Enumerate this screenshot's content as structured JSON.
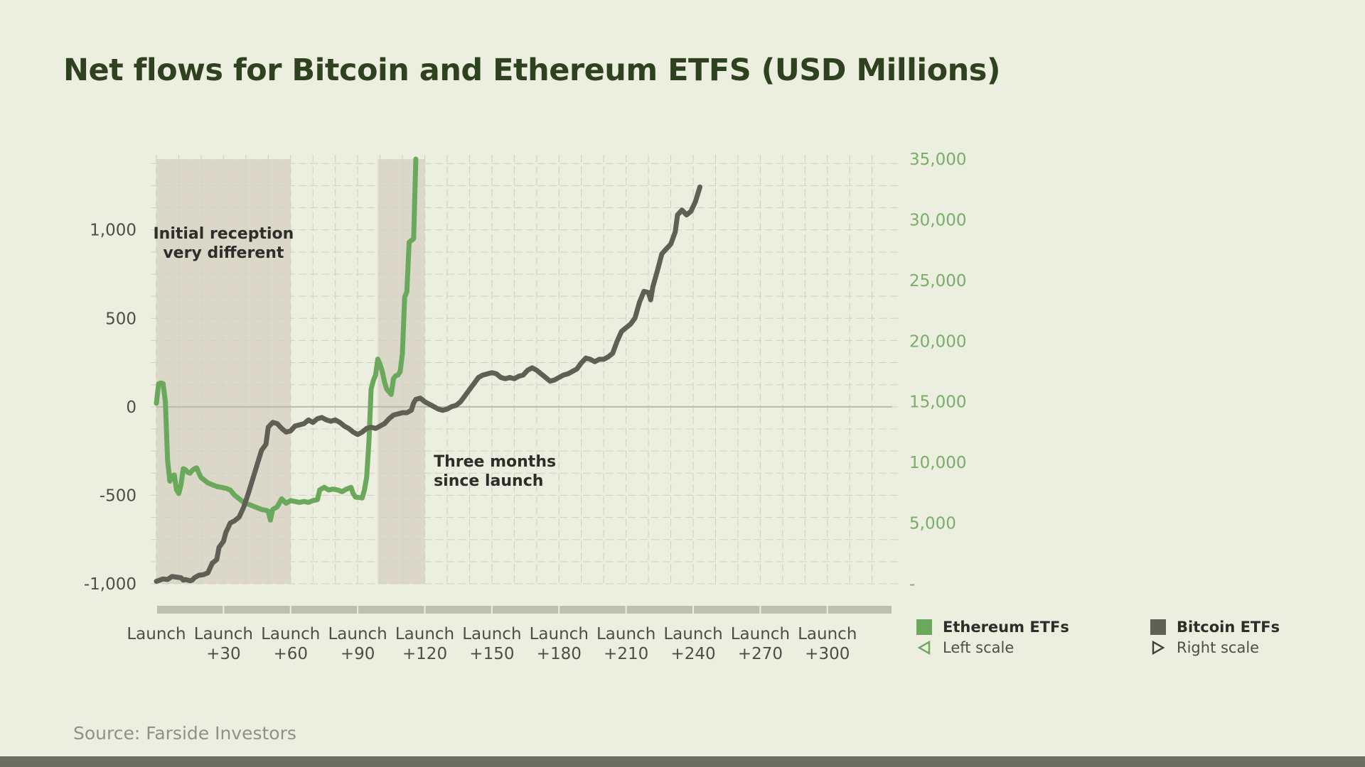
{
  "header": {
    "title": "Net flows for Bitcoin and Ethereum ETFS (USD Millions)"
  },
  "footer": {
    "source": "Source:  Farside Investors"
  },
  "colors": {
    "ethereum": "#6aa85c",
    "bitcoin": "#5f5f56",
    "shade": "#dbd8c9",
    "background": "#eceedf"
  },
  "legend": [
    {
      "name": "Ethereum ETFs",
      "scale": "Left scale",
      "color": "#6aa85c",
      "icon": "triangle-left-icon"
    },
    {
      "name": "Bitcoin ETFs",
      "scale": "Right scale",
      "color": "#5f5f56",
      "icon": "triangle-right-icon"
    }
  ],
  "chart_data": {
    "type": "line",
    "title": "Net flows for Bitcoin and Ethereum ETFS (USD Millions)",
    "x_ticks": [
      {
        "x": 0,
        "label": [
          "Launch"
        ]
      },
      {
        "x": 30,
        "label": [
          "Launch",
          "+30"
        ]
      },
      {
        "x": 60,
        "label": [
          "Launch",
          "+60"
        ]
      },
      {
        "x": 90,
        "label": [
          "Launch",
          "+90"
        ]
      },
      {
        "x": 120,
        "label": [
          "Launch",
          "+120"
        ]
      },
      {
        "x": 150,
        "label": [
          "Launch",
          "+150"
        ]
      },
      {
        "x": 180,
        "label": [
          "Launch",
          "+180"
        ]
      },
      {
        "x": 210,
        "label": [
          "Launch",
          "+210"
        ]
      },
      {
        "x": 240,
        "label": [
          "Launch",
          "+240"
        ]
      },
      {
        "x": 270,
        "label": [
          "Launch",
          "+270"
        ]
      },
      {
        "x": 300,
        "label": [
          "Launch",
          "+300"
        ]
      }
    ],
    "xlim": [
      0,
      329
    ],
    "left_axis": {
      "ticks": [
        1000,
        500,
        0,
        -500,
        -1000
      ],
      "tick_labels": [
        "1,000",
        "500",
        "0",
        "-500",
        "-1,000"
      ],
      "ylim": [
        -1000,
        1400
      ],
      "color": "#4e4e48"
    },
    "right_axis": {
      "ticks": [
        35000,
        30000,
        25000,
        20000,
        15000,
        10000,
        5000,
        0
      ],
      "tick_labels": [
        "35,000",
        "30,000",
        "25,000",
        "20,000",
        "15,000",
        "10,000",
        "5,000",
        "-"
      ],
      "ylim": [
        0,
        35000
      ],
      "color": "#7aad69"
    },
    "grid": true,
    "shaded_regions": [
      {
        "x0": 0,
        "x1": 60,
        "label": [
          "Initial reception",
          "very different"
        ]
      },
      {
        "x0": 99,
        "x1": 120,
        "label": [
          "Three months",
          "since launch"
        ]
      }
    ],
    "series": [
      {
        "name": "Ethereum ETFs",
        "axis": "left",
        "color": "#6aa85c",
        "points": [
          [
            0,
            20
          ],
          [
            1,
            130
          ],
          [
            2,
            135
          ],
          [
            3,
            130
          ],
          [
            4,
            30
          ],
          [
            5,
            -300
          ],
          [
            6,
            -420
          ],
          [
            7,
            -390
          ],
          [
            8,
            -385
          ],
          [
            9,
            -470
          ],
          [
            10,
            -490
          ],
          [
            11,
            -440
          ],
          [
            12,
            -350
          ],
          [
            13,
            -355
          ],
          [
            14,
            -370
          ],
          [
            15,
            -375
          ],
          [
            16,
            -360
          ],
          [
            17,
            -350
          ],
          [
            18,
            -345
          ],
          [
            19,
            -375
          ],
          [
            20,
            -400
          ],
          [
            21,
            -410
          ],
          [
            23,
            -430
          ],
          [
            25,
            -440
          ],
          [
            27,
            -450
          ],
          [
            29,
            -455
          ],
          [
            31,
            -460
          ],
          [
            33,
            -470
          ],
          [
            35,
            -500
          ],
          [
            37,
            -520
          ],
          [
            39,
            -540
          ],
          [
            41,
            -550
          ],
          [
            43,
            -560
          ],
          [
            45,
            -570
          ],
          [
            47,
            -580
          ],
          [
            49,
            -585
          ],
          [
            50,
            -590
          ],
          [
            51,
            -640
          ],
          [
            52,
            -580
          ],
          [
            54,
            -565
          ],
          [
            56,
            -520
          ],
          [
            58,
            -545
          ],
          [
            60,
            -530
          ],
          [
            62,
            -535
          ],
          [
            64,
            -540
          ],
          [
            66,
            -535
          ],
          [
            68,
            -540
          ],
          [
            70,
            -530
          ],
          [
            72,
            -525
          ],
          [
            73,
            -470
          ],
          [
            75,
            -455
          ],
          [
            77,
            -470
          ],
          [
            79,
            -465
          ],
          [
            81,
            -470
          ],
          [
            83,
            -480
          ],
          [
            85,
            -465
          ],
          [
            87,
            -455
          ],
          [
            88,
            -490
          ],
          [
            89,
            -510
          ],
          [
            92,
            -515
          ],
          [
            93,
            -470
          ],
          [
            94,
            -400
          ],
          [
            95,
            -200
          ],
          [
            96,
            100
          ],
          [
            97,
            150
          ],
          [
            98,
            180
          ],
          [
            99,
            270
          ],
          [
            100,
            240
          ],
          [
            101,
            200
          ],
          [
            102,
            140
          ],
          [
            103,
            100
          ],
          [
            104,
            85
          ],
          [
            105,
            70
          ],
          [
            106,
            160
          ],
          [
            107,
            175
          ],
          [
            108,
            180
          ],
          [
            109,
            200
          ],
          [
            110,
            300
          ],
          [
            111,
            620
          ],
          [
            112,
            650
          ],
          [
            113,
            930
          ],
          [
            114,
            940
          ],
          [
            115,
            950
          ],
          [
            116,
            1400
          ]
        ]
      },
      {
        "name": "Bitcoin ETFs",
        "axis": "right",
        "color": "#5f5f56",
        "points": [
          [
            0,
            200
          ],
          [
            3,
            400
          ],
          [
            5,
            350
          ],
          [
            7,
            600
          ],
          [
            9,
            550
          ],
          [
            11,
            500
          ],
          [
            12,
            300
          ],
          [
            13,
            350
          ],
          [
            15,
            250
          ],
          [
            16,
            300
          ],
          [
            17,
            500
          ],
          [
            19,
            700
          ],
          [
            21,
            750
          ],
          [
            23,
            900
          ],
          [
            25,
            1700
          ],
          [
            27,
            2000
          ],
          [
            28,
            3000
          ],
          [
            30,
            3500
          ],
          [
            31,
            4200
          ],
          [
            33,
            5000
          ],
          [
            35,
            5200
          ],
          [
            37,
            5500
          ],
          [
            39,
            6300
          ],
          [
            41,
            7400
          ],
          [
            43,
            8600
          ],
          [
            45,
            9800
          ],
          [
            47,
            11000
          ],
          [
            49,
            11500
          ],
          [
            50,
            12900
          ],
          [
            52,
            13300
          ],
          [
            54,
            13200
          ],
          [
            56,
            12800
          ],
          [
            58,
            12500
          ],
          [
            60,
            12600
          ],
          [
            62,
            13000
          ],
          [
            64,
            13100
          ],
          [
            66,
            13200
          ],
          [
            68,
            13500
          ],
          [
            70,
            13300
          ],
          [
            72,
            13600
          ],
          [
            74,
            13700
          ],
          [
            76,
            13500
          ],
          [
            78,
            13400
          ],
          [
            80,
            13500
          ],
          [
            82,
            13300
          ],
          [
            84,
            13000
          ],
          [
            86,
            12800
          ],
          [
            88,
            12500
          ],
          [
            90,
            12300
          ],
          [
            92,
            12500
          ],
          [
            94,
            12800
          ],
          [
            96,
            12900
          ],
          [
            98,
            12800
          ],
          [
            100,
            13000
          ],
          [
            102,
            13200
          ],
          [
            104,
            13600
          ],
          [
            106,
            13900
          ],
          [
            108,
            14000
          ],
          [
            110,
            14100
          ],
          [
            112,
            14100
          ],
          [
            114,
            14300
          ],
          [
            115,
            14900
          ],
          [
            116,
            15200
          ],
          [
            118,
            15300
          ],
          [
            120,
            15000
          ],
          [
            122,
            14800
          ],
          [
            124,
            14600
          ],
          [
            126,
            14400
          ],
          [
            128,
            14300
          ],
          [
            130,
            14400
          ],
          [
            132,
            14600
          ],
          [
            134,
            14700
          ],
          [
            136,
            15000
          ],
          [
            138,
            15500
          ],
          [
            140,
            16000
          ],
          [
            142,
            16500
          ],
          [
            144,
            17000
          ],
          [
            146,
            17200
          ],
          [
            148,
            17300
          ],
          [
            150,
            17400
          ],
          [
            152,
            17300
          ],
          [
            154,
            17000
          ],
          [
            156,
            16900
          ],
          [
            158,
            17000
          ],
          [
            160,
            16900
          ],
          [
            162,
            17100
          ],
          [
            164,
            17200
          ],
          [
            166,
            17600
          ],
          [
            168,
            17800
          ],
          [
            170,
            17600
          ],
          [
            172,
            17300
          ],
          [
            174,
            17000
          ],
          [
            176,
            16700
          ],
          [
            178,
            16800
          ],
          [
            180,
            17000
          ],
          [
            182,
            17200
          ],
          [
            184,
            17300
          ],
          [
            186,
            17500
          ],
          [
            188,
            17700
          ],
          [
            190,
            18200
          ],
          [
            192,
            18600
          ],
          [
            194,
            18500
          ],
          [
            196,
            18300
          ],
          [
            198,
            18500
          ],
          [
            200,
            18500
          ],
          [
            202,
            18700
          ],
          [
            204,
            19000
          ],
          [
            206,
            20000
          ],
          [
            208,
            20800
          ],
          [
            210,
            21100
          ],
          [
            212,
            21400
          ],
          [
            214,
            21900
          ],
          [
            216,
            23200
          ],
          [
            218,
            24100
          ],
          [
            220,
            24000
          ],
          [
            221,
            23400
          ],
          [
            222,
            24500
          ],
          [
            224,
            25800
          ],
          [
            226,
            27200
          ],
          [
            228,
            27600
          ],
          [
            230,
            28000
          ],
          [
            231,
            28500
          ],
          [
            232,
            29000
          ],
          [
            233,
            30400
          ],
          [
            235,
            30800
          ],
          [
            237,
            30400
          ],
          [
            239,
            30700
          ],
          [
            241,
            31500
          ],
          [
            243,
            32700
          ]
        ]
      }
    ]
  }
}
